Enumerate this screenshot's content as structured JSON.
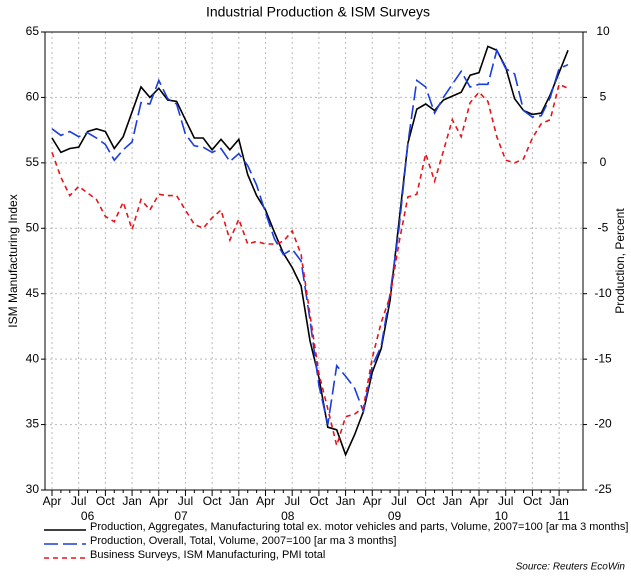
{
  "chart_data": {
    "type": "line",
    "title": "Industrial Production & ISM Surveys",
    "y_label": "ISM Manufacturing Index",
    "y2_label": "Production, Percent",
    "source": "Source: Reuters EcoWin",
    "categories": [
      "Apr",
      null,
      null,
      "Jul",
      null,
      null,
      "Oct",
      null,
      null,
      "Jan",
      null,
      null,
      "Apr",
      null,
      null,
      "Jul",
      null,
      null,
      "Oct",
      null,
      null,
      "Jan",
      null,
      null,
      "Apr",
      null,
      null,
      "Jul",
      null,
      null,
      "Oct",
      null,
      null,
      "Jan",
      null,
      null,
      "Apr",
      null,
      null,
      "Jul",
      null,
      null,
      "Oct",
      null,
      null,
      "Jan",
      null,
      null,
      "Apr",
      null,
      null,
      "Jul",
      null,
      null,
      "Oct",
      null,
      null,
      "Jan",
      null
    ],
    "year_labels": [
      "06",
      "07",
      "08",
      "09",
      "10",
      "11"
    ],
    "ylim": [
      30,
      65
    ],
    "yticks": [
      30,
      35,
      40,
      45,
      50,
      55,
      60,
      65
    ],
    "y2lim": [
      -25,
      10
    ],
    "y2ticks": [
      -25,
      -20,
      -15,
      -10,
      -5,
      0,
      5,
      10
    ],
    "grid": true,
    "series": [
      {
        "name": "Production, Aggregates, Manufacturing total ex. motor vehicles and parts, Volume, 2007=100 [ar ma 3 months]",
        "color": "#000000",
        "dash": "solid",
        "axis": "y2",
        "values": [
          1.9,
          0.8,
          1.1,
          1.2,
          2.4,
          2.6,
          2.4,
          1.1,
          2.0,
          3.9,
          5.8,
          5.0,
          5.7,
          4.8,
          4.7,
          3.3,
          1.9,
          1.9,
          1.0,
          1.8,
          1.0,
          1.8,
          -0.9,
          -2.5,
          -3.6,
          -5.3,
          -6.9,
          -8.0,
          -9.4,
          -13.6,
          -16.4,
          -20.2,
          -20.4,
          -22.3,
          -20.8,
          -19.0,
          -16.0,
          -14.2,
          -10.5,
          -4.5,
          1.5,
          4.1,
          4.5,
          4.0,
          4.8,
          5.1,
          5.4,
          6.7,
          6.9,
          8.9,
          8.6,
          7.3,
          4.9,
          4.0,
          3.7,
          3.8,
          5.2,
          6.9,
          8.6
        ]
      },
      {
        "name": "Production, Overall, Total, Volume, 2007=100 [ar ma 3 months]",
        "color": "#1a3de0",
        "dash": "long",
        "axis": "y2",
        "values": [
          2.6,
          2.1,
          2.4,
          2.0,
          2.3,
          1.9,
          1.4,
          0.2,
          1.0,
          1.6,
          4.6,
          4.5,
          6.3,
          4.9,
          4.5,
          2.2,
          1.3,
          1.2,
          0.8,
          1.1,
          0.1,
          0.7,
          -0.2,
          -1.7,
          -3.8,
          -5.8,
          -7.0,
          -6.6,
          -7.5,
          -12.0,
          -17.0,
          -20.0,
          -15.5,
          -16.3,
          -17.2,
          -19.0,
          -15.5,
          -14.0,
          -10.0,
          -5.0,
          1.5,
          6.3,
          5.8,
          3.8,
          5.0,
          6.0,
          7.0,
          5.8,
          6.0,
          6.0,
          8.6,
          7.2,
          6.8,
          4.0,
          3.5,
          3.6,
          5.0,
          7.2,
          7.5
        ]
      },
      {
        "name": "Business Surveys, ISM Manufacturing, PMI total",
        "color": "#e8141b",
        "dash": "short",
        "axis": "y",
        "values": [
          55.8,
          53.9,
          52.5,
          53.2,
          52.7,
          52.2,
          50.9,
          50.5,
          52.0,
          49.9,
          52.2,
          51.4,
          52.6,
          52.5,
          52.5,
          51.4,
          50.3,
          50.0,
          50.8,
          51.4,
          49.1,
          50.7,
          48.8,
          49.0,
          48.8,
          48.8,
          49.0,
          49.8,
          48.0,
          43.4,
          38.9,
          36.2,
          33.4,
          35.6,
          35.8,
          36.3,
          40.1,
          42.8,
          44.8,
          48.9,
          52.4,
          52.6,
          55.7,
          53.6,
          55.9,
          58.3,
          57.0,
          59.6,
          60.4,
          59.7,
          57.0,
          55.2,
          55.0,
          55.3,
          56.9,
          58.0,
          58.3,
          61.0,
          60.7
        ]
      }
    ]
  }
}
